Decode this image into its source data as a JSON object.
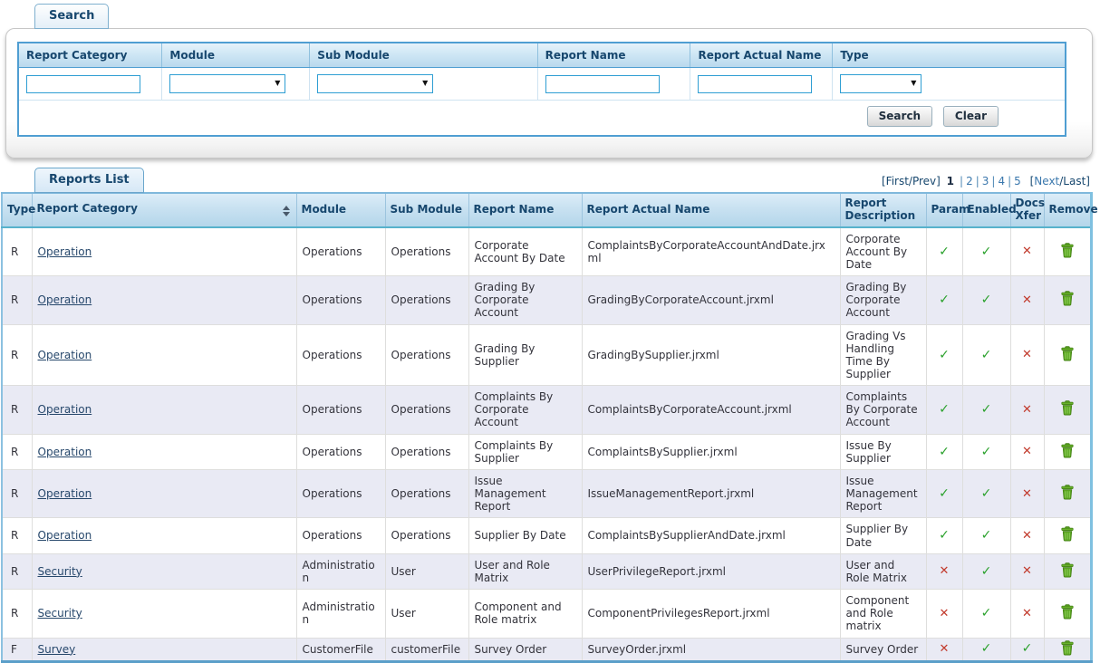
{
  "colors": {
    "accent_border_blue": "#4f9ed2",
    "input_border_blue": "#2e9ed3",
    "header_navy": "#17476e",
    "link_blue": "#3b78ad",
    "check_green": "#2aa12c",
    "cross_red": "#c23a2c",
    "trash_green": "#5aa321",
    "row_alt": "#e9eaf4",
    "table_border": "#7fc0e0"
  },
  "icons": {
    "check": "✓",
    "cross": "✕",
    "dropdown_arrow": "▼"
  },
  "search_panel": {
    "tab_label": "Search",
    "columns": [
      "Report Category",
      "Module",
      "Sub Module",
      "Report Name",
      "Report Actual Name",
      "Type"
    ],
    "inputs": {
      "report_category": "",
      "module": "",
      "sub_module": "",
      "report_name": "",
      "report_actual_name": "",
      "type": ""
    },
    "buttons": {
      "search_label": "Search",
      "clear_label": "Clear"
    }
  },
  "reports": {
    "tab_label": "Reports List",
    "pagination": {
      "first_prev": "[First/Prev]",
      "current_page": "1",
      "pages": [
        "2",
        "3",
        "4",
        "5"
      ],
      "separator": "|",
      "bracket_open": "[",
      "next": "Next",
      "slash_last": "/Last]"
    },
    "columns": [
      "Type",
      "Report Category",
      "Module",
      "Sub Module",
      "Report Name",
      "Report Actual Name",
      "Report Description",
      "Param",
      "Enabled",
      "Docs Xfer",
      "Remove"
    ],
    "rows": [
      {
        "type": "R",
        "category": "Operation",
        "module": "Operations",
        "sub_module": "Operations",
        "report_name": "Corporate Account By Date",
        "actual_name": "ComplaintsByCorporateAccountAndDate.jrxml",
        "description": "Corporate Account By Date",
        "param": true,
        "enabled": true,
        "docs_xfer": false
      },
      {
        "type": "R",
        "category": "Operation",
        "module": "Operations",
        "sub_module": "Operations",
        "report_name": "Grading By Corporate Account",
        "actual_name": "GradingByCorporateAccount.jrxml",
        "description": "Grading By Corporate Account",
        "param": true,
        "enabled": true,
        "docs_xfer": false
      },
      {
        "type": "R",
        "category": "Operation",
        "module": "Operations",
        "sub_module": "Operations",
        "report_name": "Grading By Supplier",
        "actual_name": "GradingBySupplier.jrxml",
        "description": "Grading Vs Handling Time By Supplier",
        "param": true,
        "enabled": true,
        "docs_xfer": false
      },
      {
        "type": "R",
        "category": "Operation",
        "module": "Operations",
        "sub_module": "Operations",
        "report_name": "Complaints By Corporate Account",
        "actual_name": "ComplaintsByCorporateAccount.jrxml",
        "description": "Complaints By Corporate Account",
        "param": true,
        "enabled": true,
        "docs_xfer": false
      },
      {
        "type": "R",
        "category": "Operation",
        "module": "Operations",
        "sub_module": "Operations",
        "report_name": "Complaints By Supplier",
        "actual_name": "ComplaintsBySupplier.jrxml",
        "description": "Issue By Supplier",
        "param": true,
        "enabled": true,
        "docs_xfer": false
      },
      {
        "type": "R",
        "category": "Operation",
        "module": "Operations",
        "sub_module": "Operations",
        "report_name": "Issue Management Report",
        "actual_name": "IssueManagementReport.jrxml",
        "description": "Issue Management Report",
        "param": true,
        "enabled": true,
        "docs_xfer": false
      },
      {
        "type": "R",
        "category": "Operation",
        "module": "Operations",
        "sub_module": "Operations",
        "report_name": "Supplier By Date",
        "actual_name": "ComplaintsBySupplierAndDate.jrxml",
        "description": "Supplier By Date",
        "param": true,
        "enabled": true,
        "docs_xfer": false
      },
      {
        "type": "R",
        "category": "Security",
        "module": "Administration",
        "sub_module": "User",
        "report_name": "User and Role Matrix",
        "actual_name": "UserPrivilegeReport.jrxml",
        "description": "User and Role Matrix",
        "param": false,
        "enabled": true,
        "docs_xfer": false
      },
      {
        "type": "R",
        "category": "Security",
        "module": "Administration",
        "sub_module": "User",
        "report_name": "Component and Role matrix",
        "actual_name": "ComponentPrivilegesReport.jrxml",
        "description": "Component and Role matrix",
        "param": false,
        "enabled": true,
        "docs_xfer": false
      },
      {
        "type": "F",
        "category": "Survey",
        "module": "CustomerFile",
        "sub_module": "customerFile",
        "report_name": "Survey Order",
        "actual_name": "SurveyOrder.jrxml",
        "description": "Survey Order",
        "param": false,
        "enabled": true,
        "docs_xfer": true
      }
    ]
  }
}
